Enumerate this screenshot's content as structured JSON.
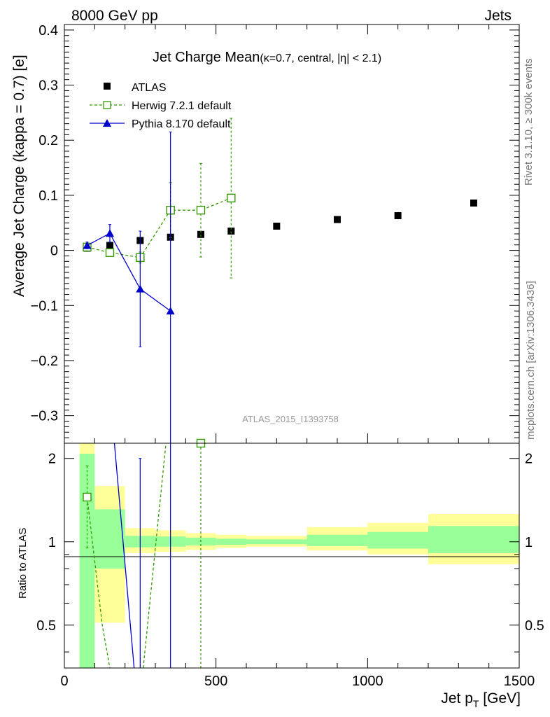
{
  "header": {
    "left": "8000 GeV pp",
    "right": "Jets"
  },
  "side_labels": {
    "rivet": "Rivet 3.1.10, ≥ 300k events",
    "mcplots": "mcplots.cern.ch [arXiv:1306.3436]"
  },
  "chart_data": {
    "type": "scatter",
    "title_main": "Jet Charge Mean",
    "title_sub": "(κ=0.7, central, |η| < 2.1)",
    "analysis_id": "ATLAS_2015_I1393758",
    "xlabel": "Jet p",
    "xlabel_sub": "T",
    "xlabel_unit": " [GeV]",
    "ylabel": "Average Jet Charge (kappa = 0.7) [e]",
    "ratio_ylabel": "Ratio to ATLAS",
    "xlim": [
      0,
      1500
    ],
    "ylim": [
      -0.35,
      0.41
    ],
    "ratio_ylim": [
      0.35,
      2.27
    ],
    "x_ticks": [
      "0",
      "500",
      "1000",
      "1500"
    ],
    "y_ticks": [
      "−0.3",
      "−0.2",
      "−0.1",
      "0",
      "0.1",
      "0.2",
      "0.3",
      "0.4"
    ],
    "ratio_ticks": [
      "0.5",
      "1",
      "2"
    ],
    "legend_position": "top-left",
    "series": [
      {
        "name": "ATLAS",
        "color": "#000000",
        "marker": "square-filled",
        "x": [
          75,
          150,
          250,
          350,
          450,
          550,
          700,
          900,
          1100,
          1350
        ],
        "y": [
          0.004,
          0.009,
          0.018,
          0.024,
          0.029,
          0.035,
          0.044,
          0.056,
          0.063,
          0.086
        ],
        "xerr_low": [
          25,
          50,
          50,
          50,
          50,
          50,
          100,
          100,
          100,
          150
        ],
        "xerr_high": [
          25,
          50,
          50,
          50,
          50,
          50,
          100,
          100,
          100,
          150
        ]
      },
      {
        "name": "Herwig 7.2.1 default",
        "color": "#339900",
        "marker": "square-open",
        "line": "dashed",
        "x": [
          75,
          150,
          250,
          350,
          450,
          550
        ],
        "y": [
          0.006,
          -0.004,
          -0.013,
          0.073,
          0.073,
          0.095
        ],
        "yerr": [
          0.004,
          0.005,
          0.01,
          0.05,
          0.085,
          0.145
        ]
      },
      {
        "name": "Pythia 8.170 default",
        "color": "#0000cc",
        "marker": "triangle-filled",
        "line": "solid",
        "x": [
          75,
          150,
          250,
          350
        ],
        "y": [
          0.009,
          0.031,
          -0.07,
          -0.11
        ],
        "yerr": [
          0.006,
          0.016,
          0.105,
          0.325
        ]
      }
    ],
    "ratio": {
      "bands": [
        {
          "x0": 50,
          "x1": 100,
          "inner": [
            0.35,
            2.08
          ],
          "outer": [
            0.35,
            2.27
          ]
        },
        {
          "x0": 100,
          "x1": 200,
          "inner": [
            0.8,
            1.31
          ],
          "outer": [
            0.51,
            1.59
          ]
        },
        {
          "x0": 200,
          "x1": 300,
          "inner": [
            0.955,
            1.05
          ],
          "outer": [
            0.91,
            1.12
          ]
        },
        {
          "x0": 300,
          "x1": 400,
          "inner": [
            0.96,
            1.045
          ],
          "outer": [
            0.92,
            1.1
          ]
        },
        {
          "x0": 400,
          "x1": 500,
          "inner": [
            0.97,
            1.035
          ],
          "outer": [
            0.935,
            1.075
          ]
        },
        {
          "x0": 500,
          "x1": 600,
          "inner": [
            0.975,
            1.025
          ],
          "outer": [
            0.95,
            1.06
          ]
        },
        {
          "x0": 600,
          "x1": 800,
          "inner": [
            0.98,
            1.02
          ],
          "outer": [
            0.96,
            1.05
          ]
        },
        {
          "x0": 800,
          "x1": 1000,
          "inner": [
            0.965,
            1.06
          ],
          "outer": [
            0.93,
            1.13
          ]
        },
        {
          "x0": 1000,
          "x1": 1200,
          "inner": [
            0.945,
            1.085
          ],
          "outer": [
            0.9,
            1.17
          ]
        },
        {
          "x0": 1200,
          "x1": 1500,
          "inner": [
            0.91,
            1.14
          ],
          "outer": [
            0.83,
            1.26
          ]
        }
      ],
      "inner_color": "#99ff99",
      "outer_color": "#ffff99",
      "herwig_points": [
        {
          "x": 75,
          "y": 1.45,
          "err_lo": 0.95,
          "err_hi": 1.88
        },
        {
          "x": 450,
          "y": 2.27
        }
      ],
      "herwig_line": [
        {
          "x": 75,
          "y": 1.45
        },
        {
          "x": 125,
          "y": 0.5
        },
        {
          "x": 150,
          "y": 0.35
        }
      ],
      "herwig_line2": [
        {
          "x": 260,
          "y": 0.35
        },
        {
          "x": 335,
          "y": 2.27
        }
      ],
      "herwig_err_x": [
        450
      ],
      "pythia_line": [
        {
          "x": 165,
          "y": 2.27
        },
        {
          "x": 230,
          "y": 0.35
        }
      ],
      "pythia_err": [
        {
          "x": 250,
          "lo": 0.35,
          "hi": 2.0
        },
        {
          "x": 350,
          "lo": 0.35,
          "hi": 2.27
        }
      ]
    }
  }
}
